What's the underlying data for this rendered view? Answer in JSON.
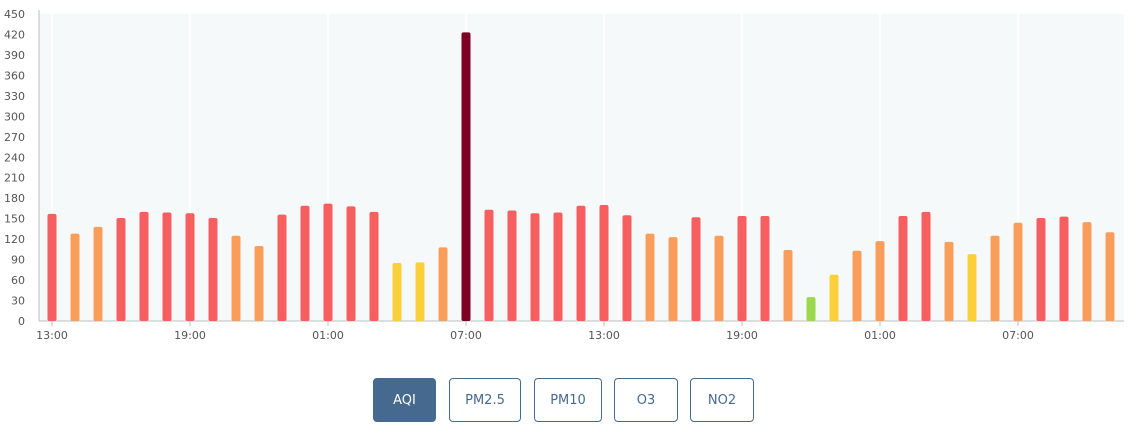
{
  "chart_data": {
    "type": "bar",
    "title": "",
    "xlabel": "",
    "ylabel": "",
    "ylim": [
      0,
      450
    ],
    "yticks": [
      0,
      30,
      60,
      90,
      120,
      150,
      180,
      210,
      240,
      270,
      300,
      330,
      360,
      390,
      420,
      450
    ],
    "xtick_labels": [
      "13:00",
      "19:00",
      "01:00",
      "07:00",
      "13:00",
      "19:00",
      "01:00",
      "07:00"
    ],
    "xtick_indices": [
      0,
      6,
      12,
      18,
      24,
      30,
      36,
      42
    ],
    "grid": true,
    "values": [
      157,
      128,
      138,
      151,
      160,
      159,
      158,
      151,
      125,
      110,
      156,
      169,
      172,
      168,
      160,
      85,
      86,
      108,
      423,
      163,
      162,
      158,
      159,
      169,
      170,
      155,
      128,
      123,
      152,
      125,
      154,
      154,
      104,
      35,
      68,
      103,
      117,
      154,
      160,
      116,
      98,
      125,
      144,
      151,
      153,
      145,
      130
    ],
    "category_colors": {
      "good": "#9cd84e",
      "moderate": "#facf39",
      "unhealthy_sensitive": "#f99d5b",
      "unhealthy": "#f65e5f",
      "hazardous": "#7e0023"
    }
  },
  "tabs": [
    {
      "label": "AQI",
      "active": true
    },
    {
      "label": "PM2.5",
      "active": false
    },
    {
      "label": "PM10",
      "active": false
    },
    {
      "label": "O3",
      "active": false
    },
    {
      "label": "NO2",
      "active": false
    }
  ]
}
